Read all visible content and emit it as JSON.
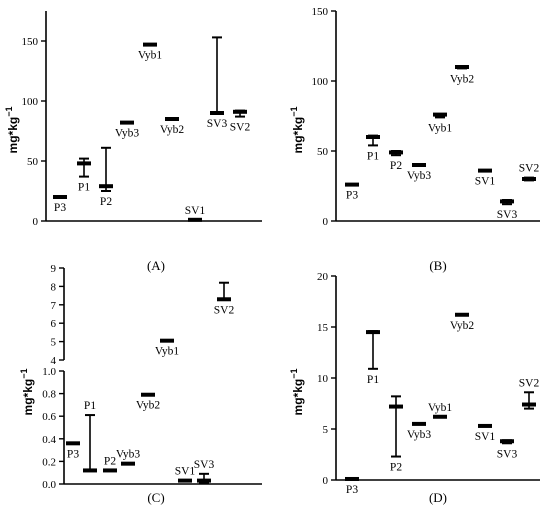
{
  "panels": [
    {
      "caption": "(A)",
      "ylabel": "mg*kg",
      "ylabel_sup": "−1",
      "segments": [
        {
          "ylim": [
            0,
            175
          ],
          "ticks": [
            0,
            50,
            100,
            150
          ]
        }
      ],
      "points": [
        {
          "label": "P3",
          "value": 20,
          "err_low": 20,
          "err_high": 20
        },
        {
          "label": "P1",
          "value": 48,
          "err_low": 37,
          "err_high": 52
        },
        {
          "label": "P2",
          "value": 29,
          "err_low": 25,
          "err_high": 61
        },
        {
          "label": "Vyb3",
          "value": 82,
          "err_low": 82,
          "err_high": 82
        },
        {
          "label": "Vyb1",
          "value": 147,
          "err_low": 147,
          "err_high": 147
        },
        {
          "label": "Vyb2",
          "value": 85,
          "err_low": 85,
          "err_high": 85
        },
        {
          "label": "SV1",
          "value": 1,
          "err_low": 1,
          "err_high": 1
        },
        {
          "label": "SV3",
          "value": 90,
          "err_low": 90,
          "err_high": 153
        },
        {
          "label": "SV2",
          "value": 91,
          "err_low": 87,
          "err_high": 92
        }
      ]
    },
    {
      "caption": "(B)",
      "ylabel": "mg*kg",
      "ylabel_sup": "−1",
      "segments": [
        {
          "ylim": [
            0,
            150
          ],
          "ticks": [
            0,
            50,
            100,
            150
          ]
        }
      ],
      "points": [
        {
          "label": "P3",
          "value": 26,
          "err_low": 26,
          "err_high": 26
        },
        {
          "label": "P1",
          "value": 60,
          "err_low": 54,
          "err_high": 61
        },
        {
          "label": "P2",
          "value": 49,
          "err_low": 47,
          "err_high": 50
        },
        {
          "label": "Vyb3",
          "value": 40,
          "err_low": 40,
          "err_high": 40
        },
        {
          "label": "Vyb1",
          "value": 76,
          "err_low": 74,
          "err_high": 76
        },
        {
          "label": "Vyb2",
          "value": 110,
          "err_low": 109,
          "err_high": 110
        },
        {
          "label": "SV1",
          "value": 36,
          "err_low": 36,
          "err_high": 36
        },
        {
          "label": "SV3",
          "value": 14,
          "err_low": 12,
          "err_high": 15
        },
        {
          "label": "SV2",
          "value": 30,
          "err_low": 29,
          "err_high": 31
        }
      ]
    },
    {
      "caption": "(C)",
      "ylabel": "mg*kg",
      "ylabel_sup": "−1",
      "segments": [
        {
          "ylim": [
            0,
            1.0
          ],
          "ticks": [
            0.0,
            0.2,
            0.4,
            0.6,
            0.8,
            1.0
          ]
        },
        {
          "ylim": [
            4,
            9
          ],
          "ticks": [
            4,
            5,
            6,
            7,
            8,
            9
          ]
        }
      ],
      "points": [
        {
          "label": "P3",
          "value": 0.36,
          "err_low": 0.36,
          "err_high": 0.36
        },
        {
          "label": "P1",
          "value": 0.12,
          "err_low": 0.12,
          "err_high": 0.61
        },
        {
          "label": "P2",
          "value": 0.12,
          "err_low": 0.12,
          "err_high": 0.12
        },
        {
          "label": "Vyb3",
          "value": 0.18,
          "err_low": 0.18,
          "err_high": 0.18
        },
        {
          "label": "Vyb2",
          "value": 0.79,
          "err_low": 0.79,
          "err_high": 0.79
        },
        {
          "label": "Vyb1",
          "value": 5.05,
          "err_low": 5.05,
          "err_high": 5.05
        },
        {
          "label": "SV1",
          "value": 0.03,
          "err_low": 0.03,
          "err_high": 0.03
        },
        {
          "label": "SV3",
          "value": 0.03,
          "err_low": 0.01,
          "err_high": 0.09
        },
        {
          "label": "SV2",
          "value": 7.3,
          "err_low": 7.3,
          "err_high": 8.2
        }
      ]
    },
    {
      "caption": "(D)",
      "ylabel": "mg*kg",
      "ylabel_sup": "−1",
      "segments": [
        {
          "ylim": [
            0,
            20
          ],
          "ticks": [
            0,
            5,
            10,
            15,
            20
          ]
        }
      ],
      "points": [
        {
          "label": "P3",
          "value": 0.1,
          "err_low": 0.1,
          "err_high": 0.1
        },
        {
          "label": "P1",
          "value": 14.5,
          "err_low": 10.9,
          "err_high": 14.6
        },
        {
          "label": "P2",
          "value": 7.2,
          "err_low": 2.3,
          "err_high": 8.2
        },
        {
          "label": "Vyb3",
          "value": 5.5,
          "err_low": 5.5,
          "err_high": 5.5
        },
        {
          "label": "Vyb1",
          "value": 6.2,
          "err_low": 6.2,
          "err_high": 6.2
        },
        {
          "label": "Vyb2",
          "value": 16.2,
          "err_low": 16.2,
          "err_high": 16.2
        },
        {
          "label": "SV1",
          "value": 5.3,
          "err_low": 5.3,
          "err_high": 5.3
        },
        {
          "label": "SV3",
          "value": 3.8,
          "err_low": 3.6,
          "err_high": 3.9
        },
        {
          "label": "SV2",
          "value": 7.4,
          "err_low": 7.0,
          "err_high": 8.6
        }
      ]
    }
  ],
  "chart_data": [
    {
      "type": "scatter",
      "title": "(A)",
      "ylabel": "mg*kg−1",
      "ylim": [
        0,
        175
      ],
      "categories": [
        "P3",
        "P1",
        "P2",
        "Vyb3",
        "Vyb1",
        "Vyb2",
        "SV1",
        "SV3",
        "SV2"
      ],
      "values": [
        20,
        48,
        29,
        82,
        147,
        85,
        1,
        90,
        91
      ],
      "error_low": [
        20,
        37,
        25,
        82,
        147,
        85,
        1,
        90,
        87
      ],
      "error_high": [
        20,
        52,
        61,
        82,
        147,
        85,
        1,
        153,
        92
      ],
      "grid": false
    },
    {
      "type": "scatter",
      "title": "(B)",
      "ylabel": "mg*kg−1",
      "ylim": [
        0,
        150
      ],
      "categories": [
        "P3",
        "P1",
        "P2",
        "Vyb3",
        "Vyb1",
        "Vyb2",
        "SV1",
        "SV3",
        "SV2"
      ],
      "values": [
        26,
        60,
        49,
        40,
        76,
        110,
        36,
        14,
        30
      ],
      "error_low": [
        26,
        54,
        47,
        40,
        74,
        109,
        36,
        12,
        29
      ],
      "error_high": [
        26,
        61,
        50,
        40,
        76,
        110,
        36,
        15,
        31
      ],
      "grid": false
    },
    {
      "type": "scatter",
      "title": "(C)",
      "ylabel": "mg*kg−1",
      "ylim": [
        0,
        9
      ],
      "axis_break": [
        1.0,
        4
      ],
      "categories": [
        "P3",
        "P1",
        "P2",
        "Vyb3",
        "Vyb2",
        "Vyb1",
        "SV1",
        "SV3",
        "SV2"
      ],
      "values": [
        0.36,
        0.12,
        0.12,
        0.18,
        0.79,
        5.05,
        0.03,
        0.03,
        7.3
      ],
      "error_low": [
        0.36,
        0.12,
        0.12,
        0.18,
        0.79,
        5.05,
        0.03,
        0.01,
        7.3
      ],
      "error_high": [
        0.36,
        0.61,
        0.12,
        0.18,
        0.79,
        5.05,
        0.03,
        0.09,
        8.2
      ],
      "grid": false
    },
    {
      "type": "scatter",
      "title": "(D)",
      "ylabel": "mg*kg−1",
      "ylim": [
        0,
        20
      ],
      "categories": [
        "P3",
        "P1",
        "P2",
        "Vyb3",
        "Vyb1",
        "Vyb2",
        "SV1",
        "SV3",
        "SV2"
      ],
      "values": [
        0.1,
        14.5,
        7.2,
        5.5,
        6.2,
        16.2,
        5.3,
        3.8,
        7.4
      ],
      "error_low": [
        0.1,
        10.9,
        2.3,
        5.5,
        6.2,
        16.2,
        5.3,
        3.6,
        7.0
      ],
      "error_high": [
        0.1,
        14.6,
        8.2,
        5.5,
        6.2,
        16.2,
        5.3,
        3.9,
        8.6
      ],
      "grid": false
    }
  ]
}
